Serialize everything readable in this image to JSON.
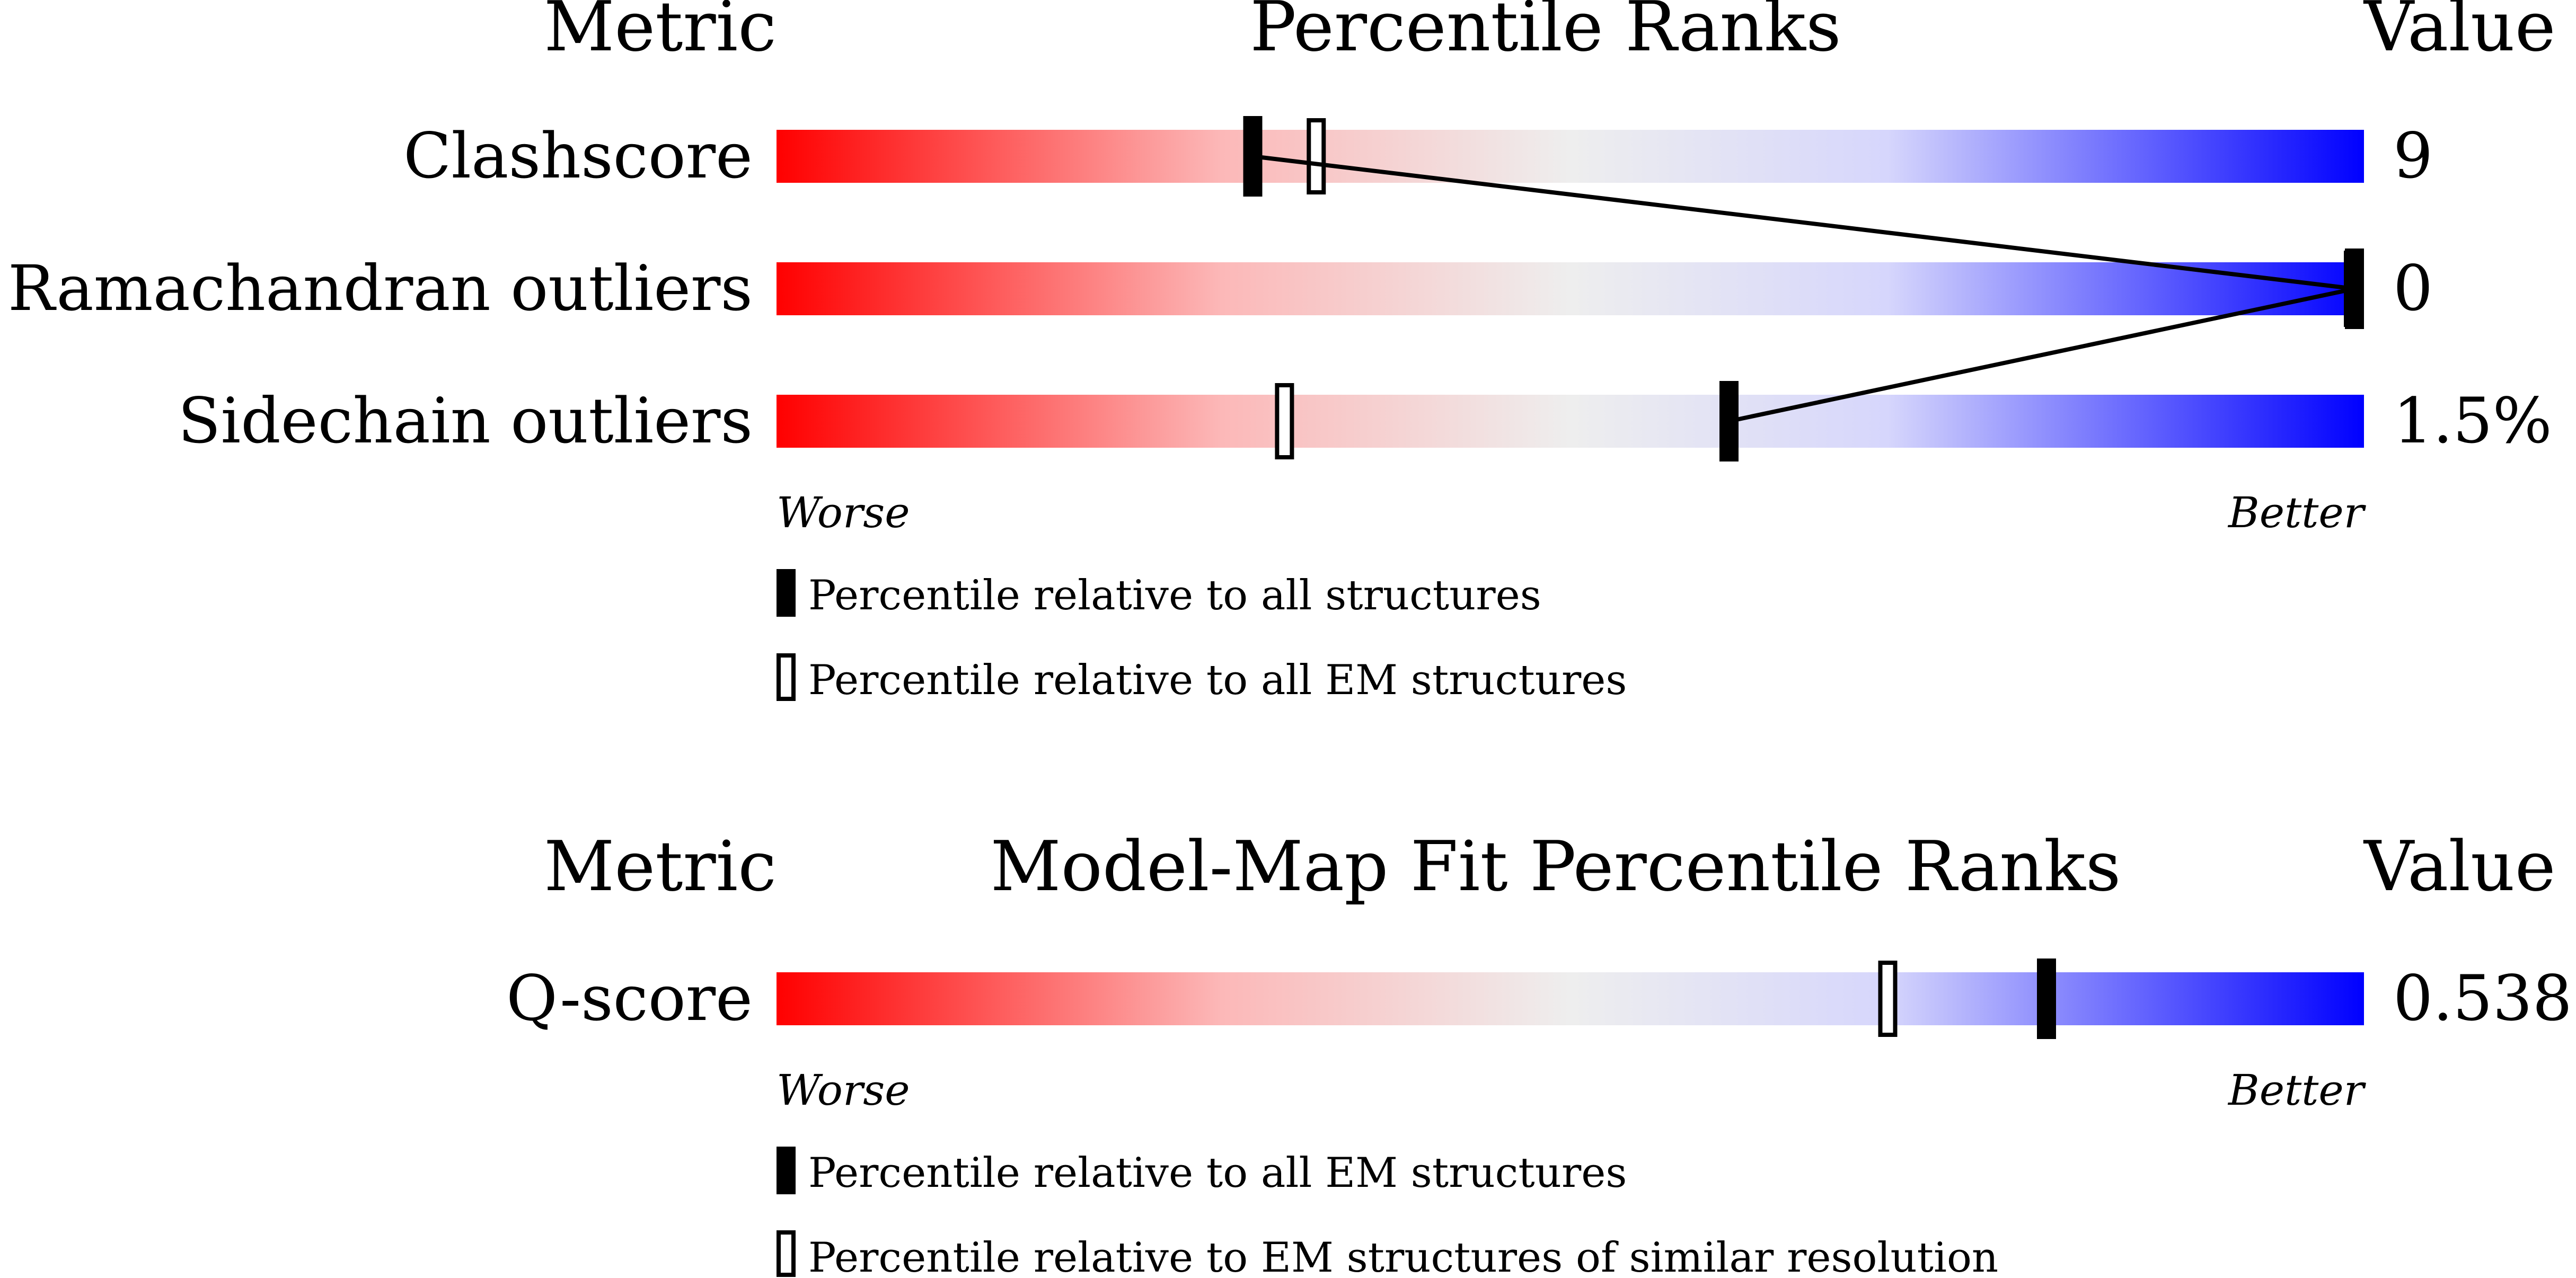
{
  "panels": [
    {
      "headers": {
        "metric": "Metric",
        "title": "Percentile Ranks",
        "value": "Value"
      },
      "worse_label": "Worse",
      "better_label": "Better",
      "legend": [
        {
          "marker": "filled",
          "text": "Percentile relative to all structures"
        },
        {
          "marker": "open",
          "text": "Percentile relative to all EM structures"
        }
      ],
      "connect_filled_markers": true
    },
    {
      "headers": {
        "metric": "Metric",
        "title": "Model-Map Fit Percentile Ranks",
        "value": "Value"
      },
      "worse_label": "Worse",
      "better_label": "Better",
      "legend": [
        {
          "marker": "filled",
          "text": "Percentile relative to all EM structures"
        },
        {
          "marker": "open",
          "text": "Percentile relative to EM structures of similar resolution"
        }
      ],
      "connect_filled_markers": false
    }
  ],
  "chart_data": [
    {
      "type": "percentile_bar",
      "title": "Percentile Ranks",
      "xlim": [
        0,
        100
      ],
      "colors": {
        "worse": "#ff0000",
        "mid": "#eeeeee",
        "better": "#0000ff"
      },
      "metrics": [
        {
          "name": "Clashscore",
          "value": "9",
          "percentile_all": 30,
          "percentile_secondary": 34
        },
        {
          "name": "Ramachandran outliers",
          "value": "0",
          "percentile_all": 100,
          "percentile_secondary": 100
        },
        {
          "name": "Sidechain outliers",
          "value": "1.5%",
          "percentile_all": 60,
          "percentile_secondary": 32
        }
      ]
    },
    {
      "type": "percentile_bar",
      "title": "Model-Map Fit Percentile Ranks",
      "xlim": [
        0,
        100
      ],
      "colors": {
        "worse": "#ff0000",
        "mid": "#eeeeee",
        "better": "#0000ff"
      },
      "metrics": [
        {
          "name": "Q-score",
          "value": "0.538",
          "percentile_all": 80,
          "percentile_secondary": 70
        }
      ]
    }
  ]
}
